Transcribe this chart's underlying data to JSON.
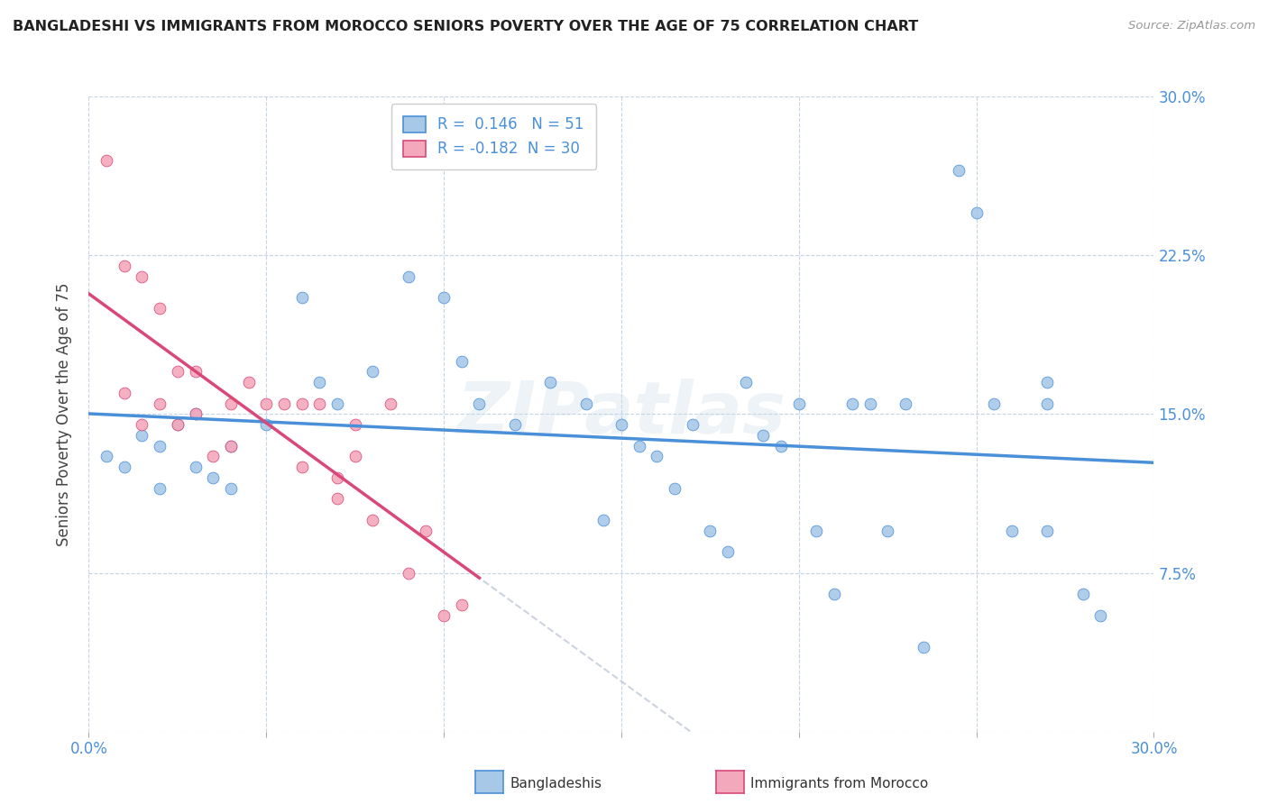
{
  "title": "BANGLADESHI VS IMMIGRANTS FROM MOROCCO SENIORS POVERTY OVER THE AGE OF 75 CORRELATION CHART",
  "source": "Source: ZipAtlas.com",
  "ylabel": "Seniors Poverty Over the Age of 75",
  "xlim": [
    0.0,
    0.3
  ],
  "ylim": [
    0.0,
    0.3
  ],
  "yticks": [
    0.0,
    0.075,
    0.15,
    0.225,
    0.3
  ],
  "ytick_labels": [
    "",
    "7.5%",
    "15.0%",
    "22.5%",
    "30.0%"
  ],
  "xticks": [
    0.0,
    0.05,
    0.1,
    0.15,
    0.2,
    0.25,
    0.3
  ],
  "xtick_labels": [
    "0.0%",
    "",
    "",
    "",
    "",
    "",
    "30.0%"
  ],
  "r_bangladeshi": 0.146,
  "n_bangladeshi": 51,
  "r_morocco": -0.182,
  "n_morocco": 30,
  "legend_label_1": "Bangladeshis",
  "legend_label_2": "Immigrants from Morocco",
  "color_bangladeshi": "#a8c8e8",
  "color_morocco": "#f4a8bc",
  "line_color_bangladeshi": "#4a90d9",
  "line_color_morocco": "#d94878",
  "line_color_dashed": "#c0c8d8",
  "watermark": "ZIPatlas",
  "bangladeshi_x": [
    0.005,
    0.01,
    0.015,
    0.02,
    0.02,
    0.025,
    0.03,
    0.03,
    0.035,
    0.04,
    0.04,
    0.05,
    0.06,
    0.065,
    0.07,
    0.08,
    0.09,
    0.1,
    0.105,
    0.11,
    0.12,
    0.13,
    0.14,
    0.145,
    0.15,
    0.155,
    0.16,
    0.165,
    0.17,
    0.175,
    0.18,
    0.185,
    0.19,
    0.195,
    0.2,
    0.205,
    0.21,
    0.215,
    0.22,
    0.225,
    0.23,
    0.235,
    0.245,
    0.25,
    0.255,
    0.26,
    0.27,
    0.27,
    0.28,
    0.285,
    0.27
  ],
  "bangladeshi_y": [
    0.13,
    0.125,
    0.14,
    0.135,
    0.115,
    0.145,
    0.15,
    0.125,
    0.12,
    0.135,
    0.115,
    0.145,
    0.205,
    0.165,
    0.155,
    0.17,
    0.215,
    0.205,
    0.175,
    0.155,
    0.145,
    0.165,
    0.155,
    0.1,
    0.145,
    0.135,
    0.13,
    0.115,
    0.145,
    0.095,
    0.085,
    0.165,
    0.14,
    0.135,
    0.155,
    0.095,
    0.065,
    0.155,
    0.155,
    0.095,
    0.155,
    0.04,
    0.265,
    0.245,
    0.155,
    0.095,
    0.095,
    0.165,
    0.065,
    0.055,
    0.155
  ],
  "morocco_x": [
    0.005,
    0.01,
    0.01,
    0.015,
    0.015,
    0.02,
    0.02,
    0.025,
    0.025,
    0.03,
    0.03,
    0.035,
    0.04,
    0.04,
    0.045,
    0.05,
    0.055,
    0.06,
    0.06,
    0.065,
    0.07,
    0.07,
    0.075,
    0.075,
    0.08,
    0.085,
    0.09,
    0.095,
    0.1,
    0.105
  ],
  "morocco_y": [
    0.27,
    0.22,
    0.16,
    0.215,
    0.145,
    0.2,
    0.155,
    0.17,
    0.145,
    0.17,
    0.15,
    0.13,
    0.155,
    0.135,
    0.165,
    0.155,
    0.155,
    0.155,
    0.125,
    0.155,
    0.12,
    0.11,
    0.145,
    0.13,
    0.1,
    0.155,
    0.075,
    0.095,
    0.055,
    0.06
  ]
}
